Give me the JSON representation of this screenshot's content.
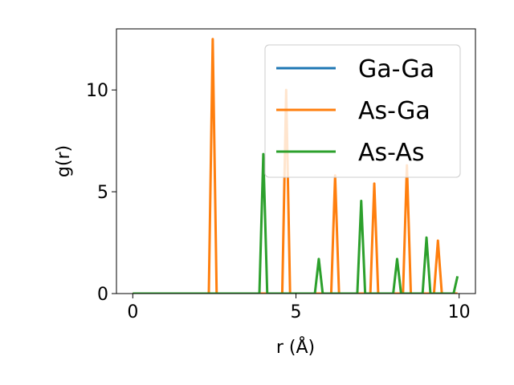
{
  "chart_data": {
    "type": "line",
    "title": "",
    "xlabel": "r (Å)",
    "ylabel": "g(r)",
    "xlim": [
      -0.5,
      10.5
    ],
    "ylim": [
      0,
      13
    ],
    "xticks": [
      0,
      5,
      10
    ],
    "yticks": [
      0,
      5,
      10
    ],
    "grid": false,
    "legend": "upper right",
    "series": [
      {
        "name": "Ga-Ga",
        "color": "#1f77b4",
        "peaks": []
      },
      {
        "name": "As-Ga",
        "color": "#ff7f0e",
        "peaks": [
          [
            2.45,
            12.5
          ],
          [
            4.7,
            10.0
          ],
          [
            6.2,
            5.8
          ],
          [
            7.4,
            5.4
          ],
          [
            8.4,
            6.3
          ],
          [
            9.35,
            2.6
          ]
        ]
      },
      {
        "name": "As-As",
        "color": "#2ca02c",
        "peaks": [
          [
            4.0,
            6.85
          ],
          [
            5.7,
            1.7
          ],
          [
            7.0,
            4.55
          ],
          [
            8.1,
            1.7
          ],
          [
            9.0,
            2.75
          ],
          [
            9.95,
            0.85
          ]
        ]
      }
    ],
    "x_start": 0,
    "x_end": 9.95
  }
}
